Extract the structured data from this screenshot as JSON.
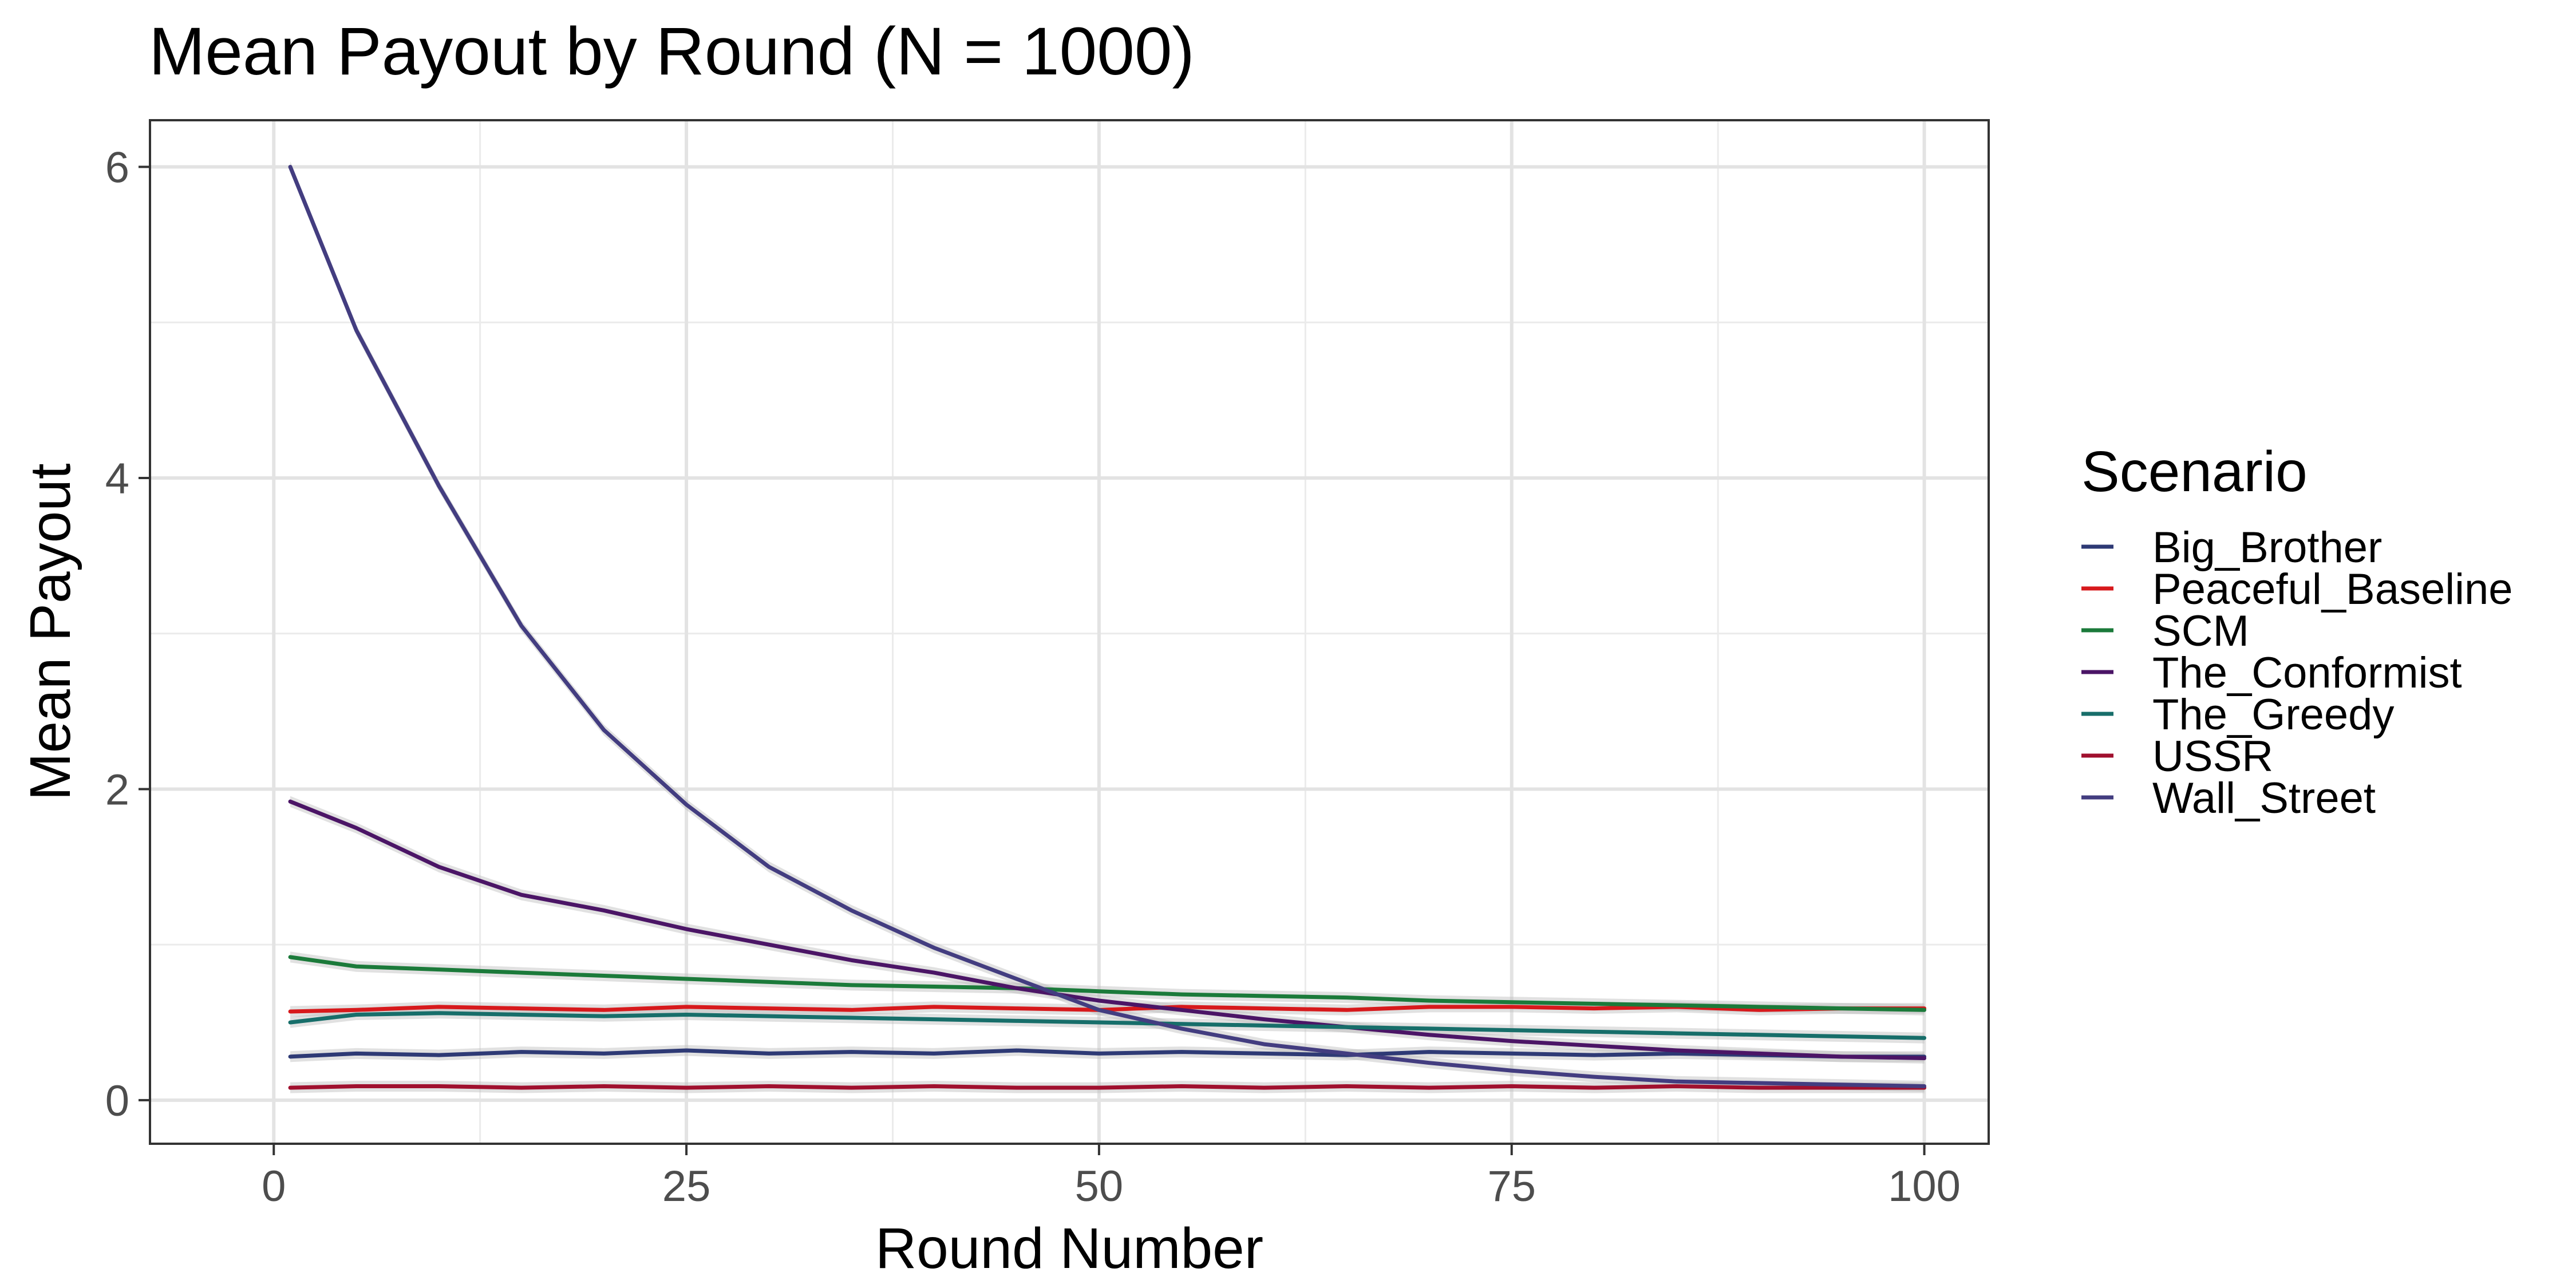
{
  "chart_data": {
    "type": "line",
    "title": "Mean Payout by Round (N = 1000)",
    "xlabel": "Round Number",
    "ylabel": "Mean Payout",
    "xlim": [
      -7.5,
      103.9
    ],
    "ylim": [
      -0.28,
      6.3
    ],
    "x_ticks": [
      0,
      25,
      50,
      75,
      100
    ],
    "y_ticks": [
      0,
      2,
      4,
      6
    ],
    "grid": true,
    "ribbon": true,
    "legend": {
      "title": "Scenario",
      "position": "right"
    },
    "x": [
      1,
      5,
      10,
      15,
      20,
      25,
      30,
      35,
      40,
      45,
      50,
      55,
      60,
      65,
      70,
      75,
      80,
      85,
      90,
      95,
      100
    ],
    "series": [
      {
        "name": "Big_Brother",
        "color": "#2E3A75",
        "values": [
          0.28,
          0.3,
          0.29,
          0.31,
          0.3,
          0.32,
          0.3,
          0.31,
          0.3,
          0.32,
          0.3,
          0.31,
          0.3,
          0.29,
          0.31,
          0.3,
          0.29,
          0.3,
          0.29,
          0.28,
          0.28
        ]
      },
      {
        "name": "Peaceful_Baseline",
        "color": "#D7191C",
        "values": [
          0.57,
          0.58,
          0.6,
          0.59,
          0.58,
          0.6,
          0.59,
          0.58,
          0.6,
          0.59,
          0.58,
          0.6,
          0.59,
          0.58,
          0.6,
          0.6,
          0.59,
          0.6,
          0.58,
          0.59,
          0.59
        ]
      },
      {
        "name": "SCM",
        "color": "#1B7A3A",
        "values": [
          0.92,
          0.86,
          0.84,
          0.82,
          0.8,
          0.78,
          0.76,
          0.74,
          0.73,
          0.72,
          0.7,
          0.68,
          0.67,
          0.66,
          0.64,
          0.63,
          0.62,
          0.61,
          0.6,
          0.59,
          0.58
        ]
      },
      {
        "name": "The_Conformist",
        "color": "#4B1566",
        "values": [
          1.92,
          1.75,
          1.5,
          1.32,
          1.22,
          1.1,
          1.0,
          0.9,
          0.82,
          0.72,
          0.64,
          0.58,
          0.52,
          0.47,
          0.42,
          0.38,
          0.35,
          0.32,
          0.3,
          0.28,
          0.27
        ]
      },
      {
        "name": "The_Greedy",
        "color": "#176E6A",
        "values": [
          0.5,
          0.55,
          0.56,
          0.55,
          0.54,
          0.55,
          0.54,
          0.53,
          0.52,
          0.51,
          0.5,
          0.49,
          0.48,
          0.47,
          0.46,
          0.45,
          0.44,
          0.43,
          0.42,
          0.41,
          0.4
        ]
      },
      {
        "name": "USSR",
        "color": "#A0102E",
        "values": [
          0.08,
          0.09,
          0.09,
          0.08,
          0.09,
          0.08,
          0.09,
          0.08,
          0.09,
          0.08,
          0.08,
          0.09,
          0.08,
          0.09,
          0.08,
          0.09,
          0.08,
          0.09,
          0.08,
          0.08,
          0.08
        ]
      },
      {
        "name": "Wall_Street",
        "color": "#433D80",
        "values": [
          6.0,
          4.95,
          3.95,
          3.05,
          2.38,
          1.9,
          1.5,
          1.22,
          0.98,
          0.78,
          0.58,
          0.46,
          0.36,
          0.3,
          0.24,
          0.19,
          0.15,
          0.12,
          0.11,
          0.1,
          0.09
        ]
      }
    ]
  }
}
